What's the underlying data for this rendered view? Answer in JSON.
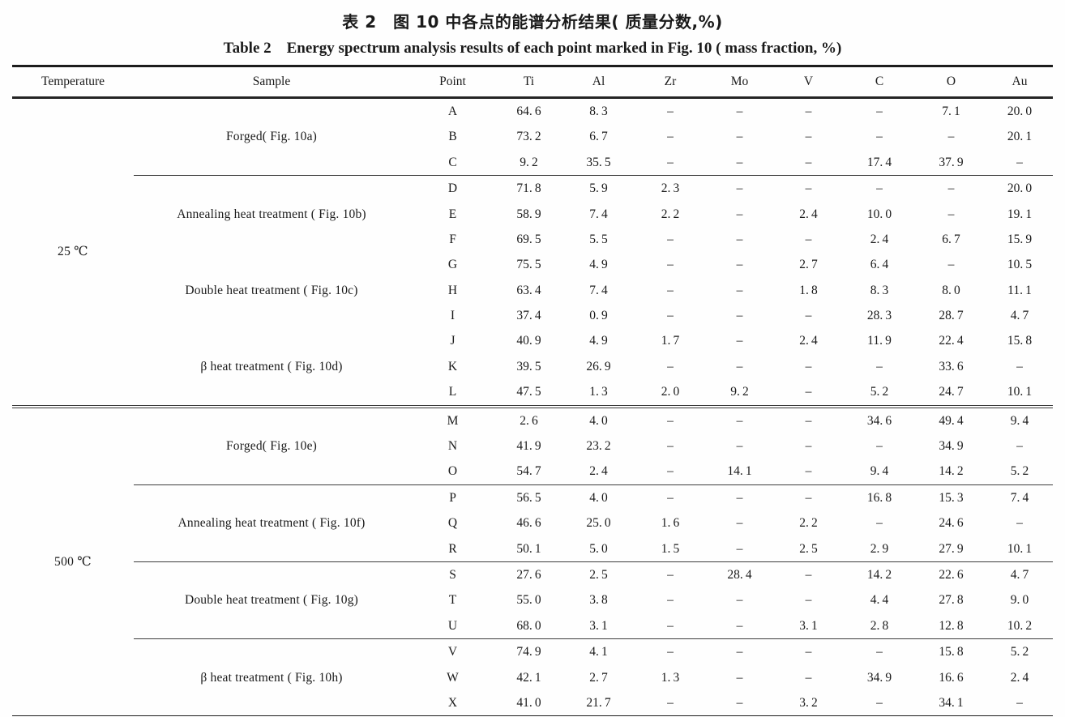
{
  "page": {
    "title_cn": "表 2 图 10 中各点的能谱分析结果( 质量分数,%)",
    "title_en": "Table 2 Energy spectrum analysis results of each point marked in Fig. 10 ( mass fraction, %)"
  },
  "table": {
    "columns": [
      "Temperature",
      "Sample",
      "Point",
      "Ti",
      "Al",
      "Zr",
      "Mo",
      "V",
      "C",
      "O",
      "Au"
    ],
    "missing_symbol": "–",
    "sections": [
      {
        "temperature": "25 ℃",
        "groups": [
          {
            "sample": "Forged( Fig. 10a)",
            "separator_above": false,
            "rows": [
              {
                "point": "A",
                "values": [
                  "64.6",
                  "8.3",
                  "–",
                  "–",
                  "–",
                  "–",
                  "7.1",
                  "20.0"
                ]
              },
              {
                "point": "B",
                "values": [
                  "73.2",
                  "6.7",
                  "–",
                  "–",
                  "–",
                  "–",
                  "–",
                  "20.1"
                ]
              },
              {
                "point": "C",
                "values": [
                  "9.2",
                  "35.5",
                  "–",
                  "–",
                  "–",
                  "17.4",
                  "37.9",
                  "–"
                ]
              }
            ]
          },
          {
            "sample": "Annealing heat treatment ( Fig. 10b)",
            "separator_above": true,
            "rows": [
              {
                "point": "D",
                "values": [
                  "71.8",
                  "5.9",
                  "2.3",
                  "–",
                  "–",
                  "–",
                  "–",
                  "20.0"
                ]
              },
              {
                "point": "E",
                "values": [
                  "58.9",
                  "7.4",
                  "2.2",
                  "–",
                  "2.4",
                  "10.0",
                  "–",
                  "19.1"
                ]
              },
              {
                "point": "F",
                "values": [
                  "69.5",
                  "5.5",
                  "–",
                  "–",
                  "–",
                  "2.4",
                  "6.7",
                  "15.9"
                ]
              }
            ]
          },
          {
            "sample": "Double heat treatment ( Fig. 10c)",
            "separator_above": false,
            "rows": [
              {
                "point": "G",
                "values": [
                  "75.5",
                  "4.9",
                  "–",
                  "–",
                  "2.7",
                  "6.4",
                  "–",
                  "10.5"
                ]
              },
              {
                "point": "H",
                "values": [
                  "63.4",
                  "7.4",
                  "–",
                  "–",
                  "1.8",
                  "8.3",
                  "8.0",
                  "11.1"
                ]
              },
              {
                "point": "I",
                "values": [
                  "37.4",
                  "0.9",
                  "–",
                  "–",
                  "–",
                  "28.3",
                  "28.7",
                  "4.7"
                ]
              }
            ]
          },
          {
            "sample": "β heat treatment ( Fig. 10d)",
            "separator_above": false,
            "rows": [
              {
                "point": "J",
                "values": [
                  "40.9",
                  "4.9",
                  "1.7",
                  "–",
                  "2.4",
                  "11.9",
                  "22.4",
                  "15.8"
                ]
              },
              {
                "point": "K",
                "values": [
                  "39.5",
                  "26.9",
                  "–",
                  "–",
                  "–",
                  "–",
                  "33.6",
                  "–"
                ]
              },
              {
                "point": "L",
                "values": [
                  "47.5",
                  "1.3",
                  "2.0",
                  "9.2",
                  "–",
                  "5.2",
                  "24.7",
                  "10.1"
                ]
              }
            ]
          }
        ]
      },
      {
        "temperature": "500 ℃",
        "groups": [
          {
            "sample": "Forged( Fig. 10e)",
            "separator_above": false,
            "rows": [
              {
                "point": "M",
                "values": [
                  "2.6",
                  "4.0",
                  "–",
                  "–",
                  "–",
                  "34.6",
                  "49.4",
                  "9.4"
                ]
              },
              {
                "point": "N",
                "values": [
                  "41.9",
                  "23.2",
                  "–",
                  "–",
                  "–",
                  "–",
                  "34.9",
                  "–"
                ]
              },
              {
                "point": "O",
                "values": [
                  "54.7",
                  "2.4",
                  "–",
                  "14.1",
                  "–",
                  "9.4",
                  "14.2",
                  "5.2"
                ]
              }
            ]
          },
          {
            "sample": "Annealing heat treatment ( Fig. 10f)",
            "separator_above": true,
            "rows": [
              {
                "point": "P",
                "values": [
                  "56.5",
                  "4.0",
                  "–",
                  "–",
                  "–",
                  "16.8",
                  "15.3",
                  "7.4"
                ]
              },
              {
                "point": "Q",
                "values": [
                  "46.6",
                  "25.0",
                  "1.6",
                  "–",
                  "2.2",
                  "–",
                  "24.6",
                  "–"
                ]
              },
              {
                "point": "R",
                "values": [
                  "50.1",
                  "5.0",
                  "1.5",
                  "–",
                  "2.5",
                  "2.9",
                  "27.9",
                  "10.1"
                ]
              }
            ]
          },
          {
            "sample": "Double heat treatment ( Fig. 10g)",
            "separator_above": true,
            "rows": [
              {
                "point": "S",
                "values": [
                  "27.6",
                  "2.5",
                  "–",
                  "28.4",
                  "–",
                  "14.2",
                  "22.6",
                  "4.7"
                ]
              },
              {
                "point": "T",
                "values": [
                  "55.0",
                  "3.8",
                  "–",
                  "–",
                  "–",
                  "4.4",
                  "27.8",
                  "9.0"
                ]
              },
              {
                "point": "U",
                "values": [
                  "68.0",
                  "3.1",
                  "–",
                  "–",
                  "3.1",
                  "2.8",
                  "12.8",
                  "10.2"
                ]
              }
            ]
          },
          {
            "sample": "β heat treatment ( Fig. 10h)",
            "separator_above": true,
            "rows": [
              {
                "point": "V",
                "values": [
                  "74.9",
                  "4.1",
                  "–",
                  "–",
                  "–",
                  "–",
                  "15.8",
                  "5.2"
                ]
              },
              {
                "point": "W",
                "values": [
                  "42.1",
                  "2.7",
                  "1.3",
                  "–",
                  "–",
                  "34.9",
                  "16.6",
                  "2.4"
                ]
              },
              {
                "point": "X",
                "values": [
                  "41.0",
                  "21.7",
                  "–",
                  "–",
                  "3.2",
                  "–",
                  "34.1",
                  "–"
                ]
              }
            ]
          }
        ]
      }
    ]
  }
}
